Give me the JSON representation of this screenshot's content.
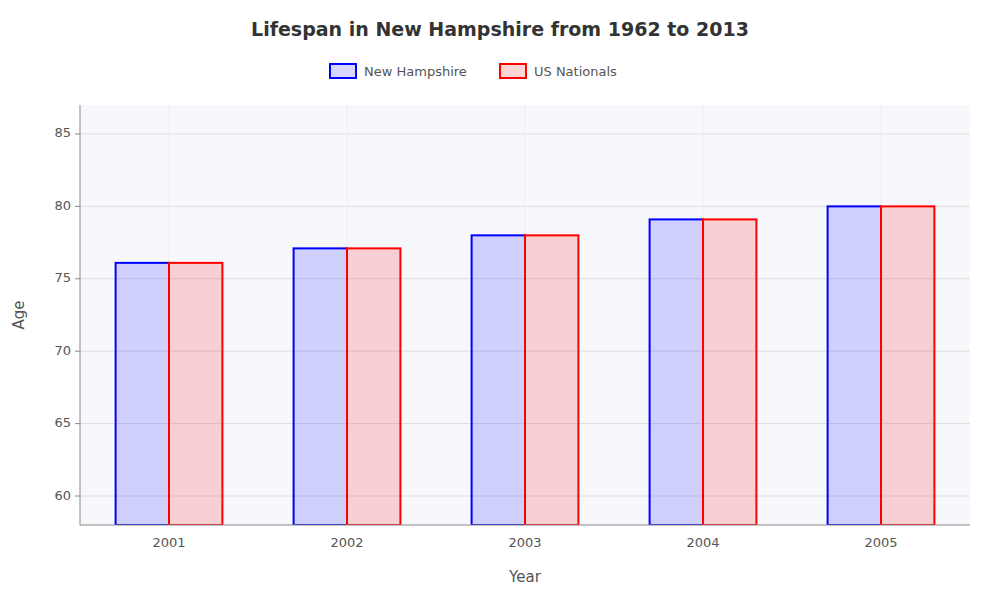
{
  "chart_data": {
    "type": "bar",
    "title": "Lifespan in New Hampshire from 1962 to 2013",
    "x_label": "Year",
    "y_label": "Age",
    "categories": [
      "2001",
      "2002",
      "2003",
      "2004",
      "2005"
    ],
    "series": [
      {
        "name": "New Hampshire",
        "color": "#0000ff",
        "values": [
          76.1,
          77.1,
          78.0,
          79.1,
          80.0
        ]
      },
      {
        "name": "US Nationals",
        "color": "#ff0000",
        "values": [
          76.1,
          77.1,
          78.0,
          79.1,
          80.0
        ]
      }
    ],
    "ylim": [
      58,
      87
    ],
    "yticks": [
      60,
      65,
      70,
      75,
      80,
      85
    ],
    "grid": true,
    "legend": "top"
  }
}
